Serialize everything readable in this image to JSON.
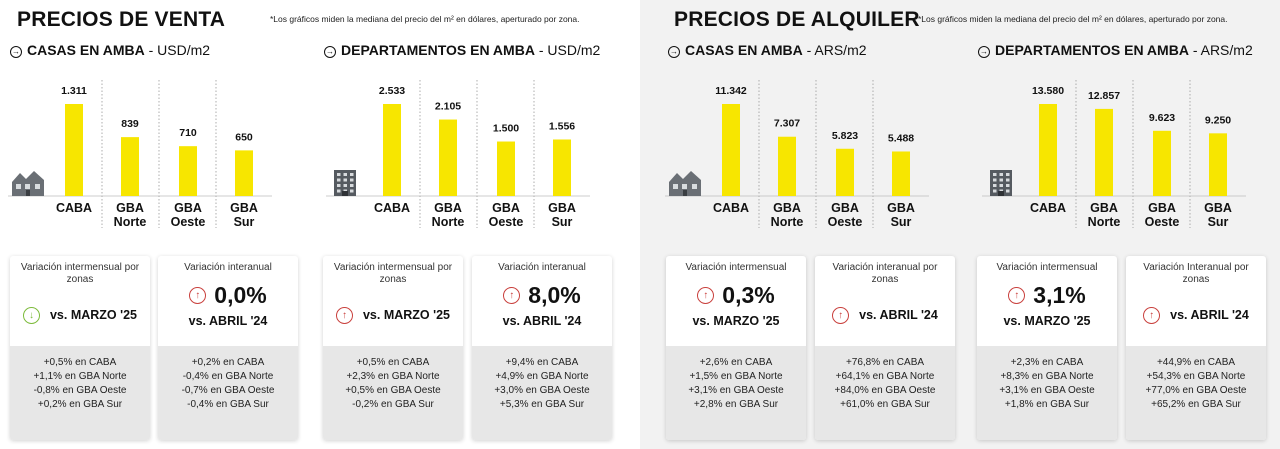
{
  "left_section": {
    "title": "PRECIOS DE VENTA",
    "note": "*Los gráficos miden la mediana del precio del m² en dólares, aperturado por zona."
  },
  "right_section": {
    "title": "PRECIOS DE ALQUILER",
    "note": "*Los gráficos miden la mediana del precio del m² en dólares, aperturado por zona."
  },
  "chart_data": [
    {
      "type": "bar",
      "title_bold": "CASAS EN AMBA",
      "title_unit": " - USD/m2",
      "categories": [
        "CABA",
        "GBA\nNorte",
        "GBA\nOeste",
        "GBA\nSur"
      ],
      "values": [
        1311,
        839,
        710,
        650
      ],
      "value_labels": [
        "1.311",
        "839",
        "710",
        "650"
      ],
      "icon": "house-icon",
      "bar_color": "#f7e600"
    },
    {
      "type": "bar",
      "title_bold": "DEPARTAMENTOS EN AMBA",
      "title_unit": " - USD/m2",
      "categories": [
        "CABA",
        "GBA\nNorte",
        "GBA\nOeste",
        "GBA\nSur"
      ],
      "values": [
        2533,
        2105,
        1500,
        1556
      ],
      "value_labels": [
        "2.533",
        "2.105",
        "1.500",
        "1.556"
      ],
      "icon": "building-icon",
      "bar_color": "#f7e600"
    },
    {
      "type": "bar",
      "title_bold": "CASAS EN AMBA",
      "title_unit": " - ARS/m2",
      "categories": [
        "CABA",
        "GBA\nNorte",
        "GBA\nOeste",
        "GBA\nSur"
      ],
      "values": [
        11342,
        7307,
        5823,
        5488
      ],
      "value_labels": [
        "11.342",
        "7.307",
        "5.823",
        "5.488"
      ],
      "icon": "house-icon",
      "bar_color": "#f7e600"
    },
    {
      "type": "bar",
      "title_bold": "DEPARTAMENTOS EN AMBA",
      "title_unit": " - ARS/m2",
      "categories": [
        "CABA",
        "GBA\nNorte",
        "GBA\nOeste",
        "GBA\nSur"
      ],
      "values": [
        13580,
        12857,
        9623,
        9250
      ],
      "value_labels": [
        "13.580",
        "12.857",
        "9.623",
        "9.250"
      ],
      "icon": "building-icon",
      "bar_color": "#f7e600"
    }
  ],
  "cards": [
    {
      "label": "Variación intermensual por zonas",
      "direction": "down",
      "percent": "",
      "vs": "vs. MARZO '25",
      "lines": [
        "+0,5% en CABA",
        "+1,1% en GBA Norte",
        "-0,8% en GBA Oeste",
        "+0,2% en GBA Sur"
      ]
    },
    {
      "label": "Variación interanual",
      "direction": "up",
      "percent": "0,0%",
      "vs": "vs. ABRIL '24",
      "lines": [
        "+0,2% en CABA",
        "-0,4% en GBA Norte",
        "-0,7% en GBA Oeste",
        "-0,4% en GBA Sur"
      ]
    },
    {
      "label": "Variación intermensual por zonas",
      "direction": "up",
      "percent": "",
      "vs": "vs. MARZO '25",
      "lines": [
        "+0,5% en CABA",
        "+2,3% en GBA Norte",
        "+0,5% en GBA Oeste",
        "-0,2% en GBA Sur"
      ]
    },
    {
      "label": "Variación interanual",
      "direction": "up",
      "percent": "8,0%",
      "vs": "vs. ABRIL '24",
      "lines": [
        "+9,4% en CABA",
        "+4,9% en GBA Norte",
        "+3,0% en GBA Oeste",
        "+5,3% en GBA Sur"
      ]
    },
    {
      "label": "Variación intermensual",
      "direction": "up",
      "percent": "0,3%",
      "vs": "vs. MARZO '25",
      "lines": [
        "+2,6% en CABA",
        "+1,5% en GBA Norte",
        "+3,1% en GBA Oeste",
        "+2,8% en GBA Sur"
      ]
    },
    {
      "label": "Variación interanual por zonas",
      "direction": "up",
      "percent": "",
      "vs": "vs. ABRIL '24",
      "lines": [
        "+76,8% en CABA",
        "+64,1% en GBA Norte",
        "+84,0% en GBA Oeste",
        "+61,0% en GBA Sur"
      ]
    },
    {
      "label": "Variación intermensual",
      "direction": "up",
      "percent": "3,1%",
      "vs": "vs. MARZO '25",
      "lines": [
        "+2,3% en CABA",
        "+8,3% en GBA Norte",
        "+3,1% en GBA Oeste",
        "+1,8% en GBA Sur"
      ]
    },
    {
      "label": "Variación Interanual por zonas",
      "direction": "up",
      "percent": "",
      "vs": "vs. ABRIL '24",
      "lines": [
        "+44,9% en CABA",
        "+54,3% en GBA Norte",
        "+77,0% en GBA Oeste",
        "+65,2% en GBA Sur"
      ]
    }
  ]
}
